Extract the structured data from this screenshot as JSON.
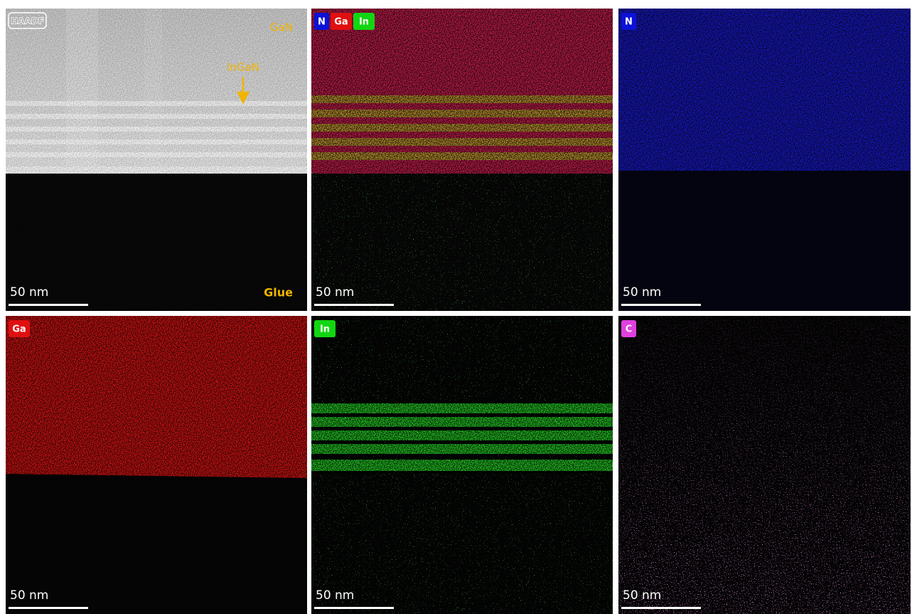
{
  "panels": [
    {
      "badges": [
        {
          "text": "HAADF"
        }
      ],
      "annotations": {
        "top": "GaN",
        "arrow": "InGaN",
        "bottom": "Glue"
      },
      "scale_bar": "50 nm"
    },
    {
      "badges": [
        {
          "text": "N",
          "color": "#0b12d6"
        },
        {
          "text": "Ga",
          "color": "#e01010"
        },
        {
          "text": "In",
          "color": "#12d612"
        }
      ],
      "scale_bar": "50 nm"
    },
    {
      "badges": [
        {
          "text": "N",
          "color": "#0b12d6"
        }
      ],
      "scale_bar": "50 nm"
    },
    {
      "badges": [
        {
          "text": "Ga",
          "color": "#e01010"
        }
      ],
      "scale_bar": "50 nm"
    },
    {
      "badges": [
        {
          "text": "In",
          "color": "#12d612"
        }
      ],
      "scale_bar": "50 nm"
    },
    {
      "badges": [
        {
          "text": "C",
          "color": "#e040e0"
        }
      ],
      "scale_bar": "50 nm"
    }
  ]
}
